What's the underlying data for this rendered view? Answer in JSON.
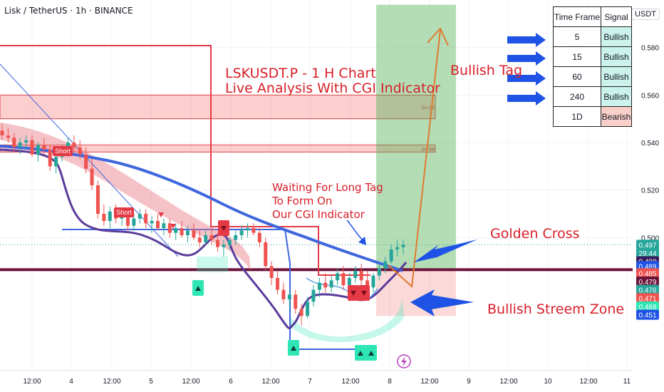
{
  "header": {
    "symbol_line": "Lisk / TetherUS · 1h · BINANCE",
    "currency": "USDT"
  },
  "annotations": {
    "title_line1": "LSKUSDT.P - 1 H Chart",
    "title_line2": "Live Analysis With CGI Indicator",
    "waiting_line1": "Waiting For Long Tag",
    "waiting_line2": "To Form On",
    "waiting_line3": "Our CGI Indicator",
    "bullish_tag": "Bullish Tag",
    "golden_cross": "Golden Cross",
    "bullish_zone": "Bullish Streem Zone",
    "short_label": "Short"
  },
  "signal_table": {
    "headers": [
      "Time Frame",
      "Signal"
    ],
    "rows": [
      {
        "tf": "5",
        "signal": "Bullish",
        "status": "bull"
      },
      {
        "tf": "15",
        "signal": "Bullish",
        "status": "bull"
      },
      {
        "tf": "60",
        "signal": "Bullish",
        "status": "bull"
      },
      {
        "tf": "240",
        "signal": "Bullish",
        "status": "bull"
      },
      {
        "tf": "1D",
        "signal": "Bearish",
        "status": "bear"
      }
    ]
  },
  "colors": {
    "bull": "#26a69a",
    "bear": "#ef5350",
    "accent_blue": "#1e53e5",
    "ma_blue": "#3f67dd",
    "ma_purple": "#5b3c9b",
    "support": "#6b1238",
    "tp_zone": "#7fcf86",
    "orange": "#e07a2f",
    "annotation_red": "#d81e28",
    "mint": "#2ee6b4"
  },
  "chart_data": {
    "type": "candlestick",
    "x_axis": {
      "ticks": [
        "12:00",
        "4",
        "12:00",
        "5",
        "12:00",
        "6",
        "12:00",
        "7",
        "12:00",
        "8",
        "12:00",
        "9",
        "12:00",
        "10",
        "12:00",
        "11"
      ]
    },
    "y_axis": {
      "ticks": [
        "0.580",
        "0.560",
        "0.540",
        "0.520",
        "0.500"
      ],
      "range": [
        0.444,
        0.6
      ]
    },
    "price_tags": [
      {
        "label": "0.497",
        "value": 0.497,
        "bg": "#26a69a"
      },
      {
        "label": "29:44",
        "value": 0.4935,
        "bg": "#26a69a"
      },
      {
        "label": "0.490",
        "value": 0.49,
        "bg": "#3a1c5e"
      },
      {
        "label": "0.489",
        "value": 0.488,
        "bg": "#1e53e5"
      },
      {
        "label": "0.485",
        "value": 0.485,
        "bg": "#ef5350"
      },
      {
        "label": "0.479",
        "value": 0.4815,
        "bg": "#6b1238"
      },
      {
        "label": "0.476",
        "value": 0.478,
        "bg": "#26a69a"
      },
      {
        "label": "0.471",
        "value": 0.4745,
        "bg": "#ef5350"
      },
      {
        "label": "0.468",
        "value": 0.471,
        "bg": "#2ee6b4"
      },
      {
        "label": "0.451",
        "value": 0.4675,
        "bg": "#1e53e5"
      }
    ],
    "zones": [
      {
        "name": "upper-resistance",
        "from": 0.55,
        "to": 0.56,
        "label": "Dn OB"
      },
      {
        "name": "lower-resistance",
        "from": 0.536,
        "to": 0.539,
        "label": "Dn OB"
      }
    ],
    "support_level": 0.4865,
    "take_profit_zone": [
      0.487,
      0.598
    ],
    "stop_zone": [
      0.467,
      0.4865
    ],
    "target_price": 0.598,
    "candles": [
      [
        0.545,
        0.548,
        0.541,
        0.543
      ],
      [
        0.543,
        0.546,
        0.54,
        0.542
      ],
      [
        0.542,
        0.544,
        0.536,
        0.538
      ],
      [
        0.538,
        0.542,
        0.535,
        0.54
      ],
      [
        0.54,
        0.543,
        0.537,
        0.541
      ],
      [
        0.541,
        0.543,
        0.534,
        0.535
      ],
      [
        0.535,
        0.54,
        0.532,
        0.539
      ],
      [
        0.539,
        0.542,
        0.535,
        0.537
      ],
      [
        0.537,
        0.539,
        0.528,
        0.53
      ],
      [
        0.53,
        0.536,
        0.527,
        0.534
      ],
      [
        0.534,
        0.539,
        0.532,
        0.537
      ],
      [
        0.537,
        0.542,
        0.534,
        0.54
      ],
      [
        0.54,
        0.543,
        0.536,
        0.538
      ],
      [
        0.538,
        0.541,
        0.533,
        0.535
      ],
      [
        0.535,
        0.538,
        0.527,
        0.529
      ],
      [
        0.529,
        0.533,
        0.52,
        0.522
      ],
      [
        0.522,
        0.524,
        0.508,
        0.51
      ],
      [
        0.51,
        0.514,
        0.505,
        0.507
      ],
      [
        0.507,
        0.513,
        0.504,
        0.511
      ],
      [
        0.511,
        0.514,
        0.506,
        0.508
      ],
      [
        0.508,
        0.512,
        0.505,
        0.509
      ],
      [
        0.509,
        0.511,
        0.503,
        0.505
      ],
      [
        0.505,
        0.51,
        0.503,
        0.508
      ],
      [
        0.508,
        0.512,
        0.506,
        0.51
      ],
      [
        0.51,
        0.512,
        0.504,
        0.506
      ],
      [
        0.506,
        0.509,
        0.502,
        0.507
      ],
      [
        0.507,
        0.51,
        0.503,
        0.504
      ],
      [
        0.504,
        0.508,
        0.501,
        0.506
      ],
      [
        0.506,
        0.508,
        0.5,
        0.502
      ],
      [
        0.502,
        0.506,
        0.499,
        0.504
      ],
      [
        0.504,
        0.507,
        0.5,
        0.501
      ],
      [
        0.501,
        0.505,
        0.498,
        0.503
      ],
      [
        0.503,
        0.506,
        0.499,
        0.5
      ],
      [
        0.5,
        0.503,
        0.496,
        0.498
      ],
      [
        0.498,
        0.503,
        0.497,
        0.501
      ],
      [
        0.501,
        0.504,
        0.497,
        0.499
      ],
      [
        0.499,
        0.502,
        0.494,
        0.496
      ],
      [
        0.496,
        0.499,
        0.492,
        0.497
      ],
      [
        0.497,
        0.5,
        0.495,
        0.499
      ],
      [
        0.499,
        0.503,
        0.497,
        0.501
      ],
      [
        0.501,
        0.505,
        0.499,
        0.503
      ],
      [
        0.503,
        0.506,
        0.5,
        0.504
      ],
      [
        0.504,
        0.506,
        0.501,
        0.502
      ],
      [
        0.502,
        0.504,
        0.496,
        0.498
      ],
      [
        0.498,
        0.5,
        0.486,
        0.488
      ],
      [
        0.488,
        0.49,
        0.48,
        0.483
      ],
      [
        0.483,
        0.486,
        0.476,
        0.478
      ],
      [
        0.478,
        0.481,
        0.472,
        0.474
      ],
      [
        0.474,
        0.478,
        0.47,
        0.476
      ],
      [
        0.476,
        0.478,
        0.468,
        0.47
      ],
      [
        0.47,
        0.472,
        0.463,
        0.467
      ],
      [
        0.467,
        0.475,
        0.466,
        0.473
      ],
      [
        0.473,
        0.48,
        0.471,
        0.478
      ],
      [
        0.478,
        0.483,
        0.475,
        0.481
      ],
      [
        0.481,
        0.485,
        0.477,
        0.479
      ],
      [
        0.479,
        0.484,
        0.477,
        0.482
      ],
      [
        0.482,
        0.487,
        0.48,
        0.485
      ],
      [
        0.485,
        0.488,
        0.478,
        0.48
      ],
      [
        0.48,
        0.485,
        0.476,
        0.483
      ],
      [
        0.483,
        0.488,
        0.481,
        0.486
      ],
      [
        0.486,
        0.489,
        0.48,
        0.482
      ],
      [
        0.482,
        0.486,
        0.478,
        0.479
      ],
      [
        0.479,
        0.485,
        0.477,
        0.484
      ],
      [
        0.484,
        0.489,
        0.482,
        0.487
      ],
      [
        0.487,
        0.492,
        0.485,
        0.49
      ],
      [
        0.49,
        0.497,
        0.489,
        0.495
      ],
      [
        0.495,
        0.499,
        0.492,
        0.496
      ],
      [
        0.496,
        0.499,
        0.493,
        0.497
      ]
    ]
  }
}
